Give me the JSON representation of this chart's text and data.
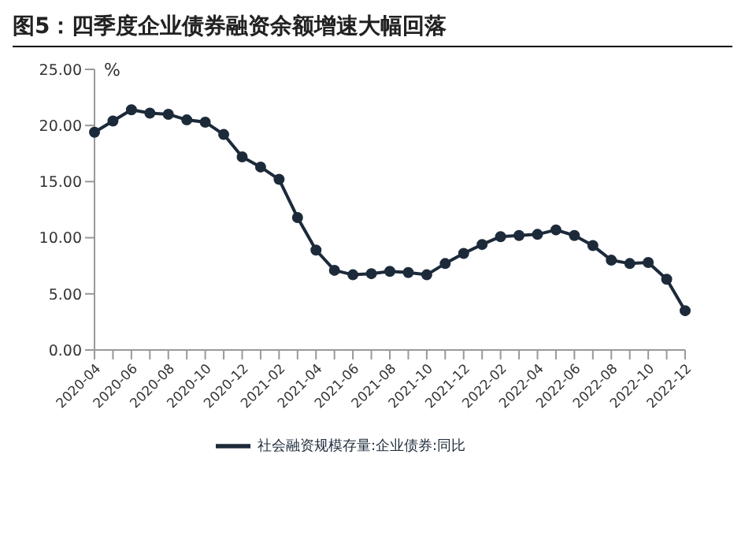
{
  "chart_data": {
    "type": "line",
    "title": "图5：四季度企业债券融资余额增速大幅回落",
    "ylabel": "%",
    "categories": [
      "2020-04",
      null,
      "2020-06",
      null,
      "2020-08",
      null,
      "2020-10",
      null,
      "2020-12",
      null,
      "2021-02",
      null,
      "2021-04",
      null,
      "2021-06",
      null,
      "2021-08",
      null,
      "2021-10",
      null,
      "2021-12",
      null,
      "2022-02",
      null,
      "2022-04",
      null,
      "2022-06",
      null,
      "2022-08",
      null,
      "2022-10",
      null,
      "2022-12"
    ],
    "series": [
      {
        "name": "社会融资规模存量:企业债券:同比",
        "color": "#1c2a3a",
        "values": [
          19.4,
          20.4,
          21.4,
          21.1,
          21.0,
          20.5,
          20.3,
          19.2,
          17.2,
          16.3,
          15.2,
          11.8,
          8.9,
          7.1,
          6.7,
          6.8,
          7.0,
          6.9,
          6.7,
          7.7,
          8.6,
          9.4,
          10.1,
          10.2,
          10.3,
          10.7,
          10.2,
          9.3,
          8.0,
          7.7,
          7.8,
          6.3,
          3.5
        ]
      }
    ],
    "ylim": [
      0,
      25
    ],
    "yticks": [
      {
        "value": 0,
        "label": "0.00"
      },
      {
        "value": 5,
        "label": "5.00"
      },
      {
        "value": 10,
        "label": "10.00"
      },
      {
        "value": 15,
        "label": "15.00"
      },
      {
        "value": 20,
        "label": "20.00"
      },
      {
        "value": 25,
        "label": "25.00"
      }
    ],
    "grid": false,
    "legend": "bottom",
    "marker": "circle",
    "line_style": "solid"
  }
}
